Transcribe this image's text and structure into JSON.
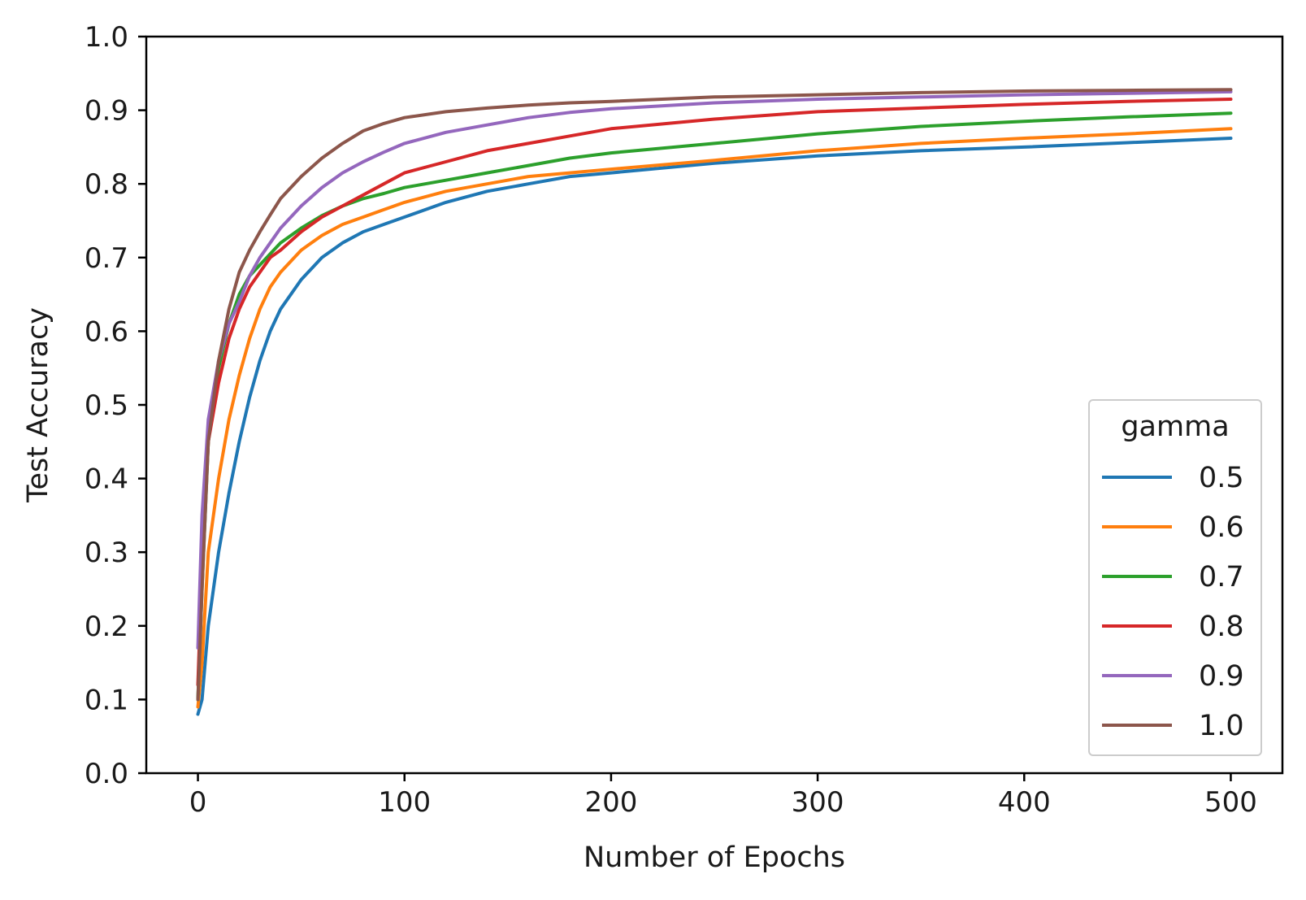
{
  "chart_data": {
    "type": "line",
    "title": "",
    "xlabel": "Number of Epochs",
    "ylabel": "Test Accuracy",
    "xlim": [
      -25,
      525
    ],
    "ylim": [
      0.0,
      1.0
    ],
    "xticks": [
      0,
      100,
      200,
      300,
      400,
      500
    ],
    "xtick_labels": [
      "0",
      "100",
      "200",
      "300",
      "400",
      "500"
    ],
    "yticks": [
      0.0,
      0.1,
      0.2,
      0.3,
      0.4,
      0.5,
      0.6,
      0.7,
      0.8,
      0.9,
      1.0
    ],
    "ytick_labels": [
      "0.0",
      "0.1",
      "0.2",
      "0.3",
      "0.4",
      "0.5",
      "0.6",
      "0.7",
      "0.8",
      "0.9",
      "1.0"
    ],
    "grid": false,
    "legend": {
      "title": "gamma",
      "placement": "lower-right"
    },
    "x": [
      0,
      2,
      5,
      10,
      15,
      20,
      25,
      30,
      35,
      40,
      50,
      60,
      70,
      80,
      90,
      100,
      120,
      140,
      160,
      180,
      200,
      250,
      300,
      350,
      400,
      450,
      500
    ],
    "series": [
      {
        "name": "0.5",
        "color": "#1f77b4",
        "values": [
          0.08,
          0.1,
          0.2,
          0.3,
          0.38,
          0.45,
          0.51,
          0.56,
          0.6,
          0.63,
          0.67,
          0.7,
          0.72,
          0.735,
          0.745,
          0.755,
          0.775,
          0.79,
          0.8,
          0.81,
          0.815,
          0.828,
          0.838,
          0.845,
          0.85,
          0.856,
          0.862
        ]
      },
      {
        "name": "0.6",
        "color": "#ff7f0e",
        "values": [
          0.09,
          0.15,
          0.3,
          0.4,
          0.48,
          0.54,
          0.59,
          0.63,
          0.66,
          0.68,
          0.71,
          0.73,
          0.745,
          0.755,
          0.765,
          0.775,
          0.79,
          0.8,
          0.81,
          0.815,
          0.82,
          0.832,
          0.845,
          0.855,
          0.862,
          0.868,
          0.875
        ]
      },
      {
        "name": "0.7",
        "color": "#2ca02c",
        "values": [
          0.1,
          0.25,
          0.45,
          0.55,
          0.61,
          0.65,
          0.675,
          0.69,
          0.705,
          0.72,
          0.74,
          0.757,
          0.77,
          0.78,
          0.787,
          0.795,
          0.805,
          0.815,
          0.825,
          0.835,
          0.842,
          0.855,
          0.868,
          0.878,
          0.885,
          0.891,
          0.896
        ]
      },
      {
        "name": "0.8",
        "color": "#d62728",
        "values": [
          0.12,
          0.28,
          0.45,
          0.53,
          0.59,
          0.63,
          0.66,
          0.68,
          0.7,
          0.71,
          0.735,
          0.755,
          0.77,
          0.785,
          0.8,
          0.815,
          0.83,
          0.845,
          0.855,
          0.865,
          0.875,
          0.888,
          0.898,
          0.903,
          0.908,
          0.912,
          0.915
        ]
      },
      {
        "name": "0.9",
        "color": "#9467bd",
        "values": [
          0.17,
          0.35,
          0.48,
          0.56,
          0.61,
          0.64,
          0.675,
          0.7,
          0.72,
          0.74,
          0.77,
          0.795,
          0.815,
          0.83,
          0.843,
          0.855,
          0.87,
          0.88,
          0.89,
          0.897,
          0.902,
          0.91,
          0.915,
          0.918,
          0.921,
          0.923,
          0.925
        ]
      },
      {
        "name": "1.0",
        "color": "#8c564b",
        "values": [
          0.1,
          0.25,
          0.45,
          0.56,
          0.63,
          0.68,
          0.71,
          0.735,
          0.758,
          0.78,
          0.81,
          0.835,
          0.855,
          0.872,
          0.882,
          0.89,
          0.898,
          0.903,
          0.907,
          0.91,
          0.912,
          0.918,
          0.921,
          0.924,
          0.926,
          0.927,
          0.928
        ]
      }
    ]
  }
}
